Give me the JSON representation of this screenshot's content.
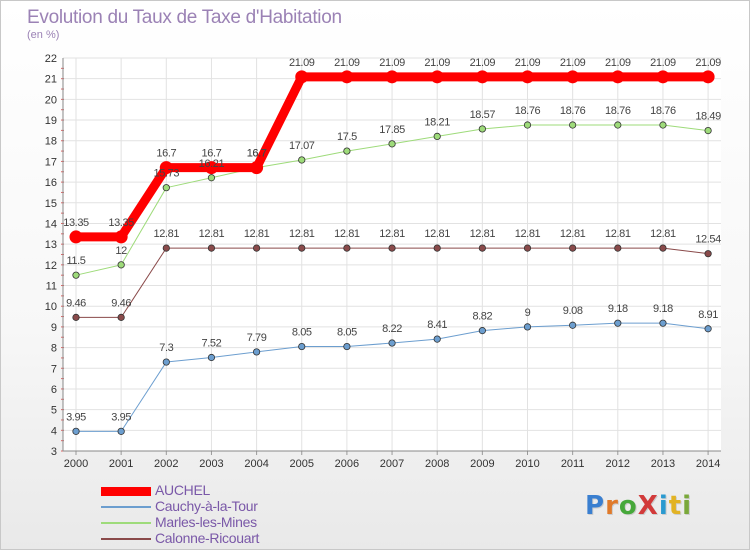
{
  "title": "Evolution du Taux de Taxe d'Habitation",
  "subtitle": "(en %)",
  "logo": {
    "text": "ProXiti",
    "letter_colors": [
      "#3a7fd0",
      "#e07a2a",
      "#46a83a",
      "#d23a3a",
      "#2a9ad0",
      "#e2b324",
      "#7aa83a"
    ]
  },
  "chart_data": {
    "type": "line",
    "x": [
      "2000",
      "2001",
      "2002",
      "2003",
      "2004",
      "2005",
      "2006",
      "2007",
      "2008",
      "2009",
      "2010",
      "2011",
      "2012",
      "2013",
      "2014"
    ],
    "ylim": [
      3,
      22
    ],
    "yticks": [
      3,
      4,
      5,
      6,
      7,
      8,
      9,
      10,
      11,
      12,
      13,
      14,
      15,
      16,
      17,
      18,
      19,
      20,
      21,
      22
    ],
    "grid": true,
    "series": [
      {
        "name": "AUCHEL",
        "color": "#ff0000",
        "width": 9,
        "values": [
          13.35,
          13.35,
          16.7,
          16.7,
          16.7,
          21.09,
          21.09,
          21.09,
          21.09,
          21.09,
          21.09,
          21.09,
          21.09,
          21.09,
          21.09
        ],
        "labels": [
          "13.35",
          "13.35",
          "16.7",
          "16.7",
          "16.7",
          "21.09",
          "21.09",
          "21.09",
          "21.09",
          "21.09",
          "21.09",
          "21.09",
          "21.09",
          "21.09",
          "21.09"
        ]
      },
      {
        "name": "Cauchy-à-la-Tour",
        "color": "#6c9ecf",
        "width": 1,
        "values": [
          3.95,
          3.95,
          7.3,
          7.52,
          7.79,
          8.05,
          8.05,
          8.22,
          8.41,
          8.82,
          9,
          9.08,
          9.18,
          9.18,
          8.91
        ],
        "labels": [
          "3.95",
          "3.95",
          "7.3",
          "7.52",
          "7.79",
          "8.05",
          "8.05",
          "8.22",
          "8.41",
          "8.82",
          "9",
          "9.08",
          "9.18",
          "9.18",
          "8.91"
        ]
      },
      {
        "name": "Marles-les-Mines",
        "color": "#9edb7a",
        "width": 1,
        "values": [
          11.5,
          12,
          15.73,
          16.21,
          16.7,
          17.07,
          17.5,
          17.85,
          18.21,
          18.57,
          18.76,
          18.76,
          18.76,
          18.76,
          18.49
        ],
        "labels": [
          "11.5",
          "12",
          "15.73",
          "16.21",
          "16.7",
          "17.07",
          "17.5",
          "17.85",
          "18.21",
          "18.57",
          "18.76",
          "18.76",
          "18.76",
          "18.76",
          "18.49"
        ]
      },
      {
        "name": "Calonne-Ricouart",
        "color": "#8a4a4a",
        "width": 1,
        "values": [
          9.46,
          9.46,
          12.81,
          12.81,
          12.81,
          12.81,
          12.81,
          12.81,
          12.81,
          12.81,
          12.81,
          12.81,
          12.81,
          12.81,
          12.54
        ],
        "labels": [
          "9.46",
          "9.46",
          "12.81",
          "12.81",
          "12.81",
          "12.81",
          "12.81",
          "12.81",
          "12.81",
          "12.81",
          "12.81",
          "12.81",
          "12.81",
          "12.81",
          "12.54"
        ]
      }
    ],
    "legend_order": [
      "AUCHEL",
      "Cauchy-à-la-Tour",
      "Marles-les-Mines",
      "Calonne-Ricouart"
    ],
    "legend_position": "bottom-left"
  }
}
